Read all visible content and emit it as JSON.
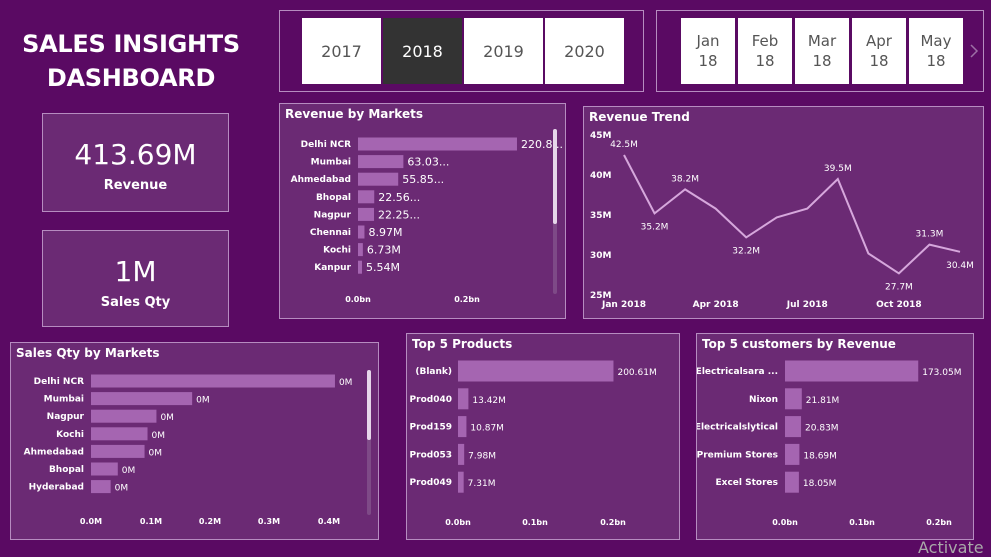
{
  "header": {
    "title_line1": "SALES INSIGHTS",
    "title_line2": "DASHBOARD"
  },
  "kpis": {
    "revenue": {
      "value": "413.69M",
      "label": "Revenue"
    },
    "qty": {
      "value": "1M",
      "label": "Sales Qty"
    }
  },
  "years": {
    "items": [
      "2017",
      "2018",
      "2019",
      "2020"
    ],
    "selected": "2018"
  },
  "months": {
    "items": [
      [
        "Jan",
        "18"
      ],
      [
        "Feb",
        "18"
      ],
      [
        "Mar",
        "18"
      ],
      [
        "Apr",
        "18"
      ],
      [
        "May",
        "18"
      ]
    ],
    "next_icon": "chevron-right-icon"
  },
  "panels": {
    "rev_markets": "Revenue by Markets",
    "trend": "Revenue Trend",
    "qty_markets": "Sales Qty by Markets",
    "products": "Top 5 Products",
    "customers": "Top 5 customers by Revenue"
  },
  "watermark": "Activate",
  "colors": {
    "bar": "#a565b1",
    "line": "#d6a7dc",
    "background": "#5a0a63",
    "panel": "#6b2a74"
  },
  "chart_data": [
    {
      "id": "rev_markets",
      "type": "bar",
      "orientation": "horizontal",
      "title": "Revenue by Markets",
      "categories": [
        "Delhi NCR",
        "Mumbai",
        "Ahmedabad",
        "Bhopal",
        "Nagpur",
        "Chennai",
        "Kochi",
        "Kanpur"
      ],
      "values": [
        220.8,
        63.03,
        55.85,
        22.56,
        22.25,
        8.97,
        6.73,
        5.54
      ],
      "unit": "M",
      "labels": [
        "220.8...",
        "63.03...",
        "55.85...",
        "22.56...",
        "22.25...",
        "8.97M",
        "6.73M",
        "5.54M"
      ],
      "xticks": [
        "0.0bn",
        "0.2bn"
      ],
      "xlim": [
        0,
        250
      ]
    },
    {
      "id": "trend",
      "type": "line",
      "title": "Revenue Trend",
      "x": [
        "Jan 2018",
        "Feb 2018",
        "Mar 2018",
        "Apr 2018",
        "May 2018",
        "Jun 2018",
        "Jul 2018",
        "Aug 2018",
        "Sep 2018",
        "Oct 2018",
        "Nov 2018",
        "Dec 2018"
      ],
      "values": [
        42.5,
        35.2,
        38.2,
        35.8,
        32.2,
        34.7,
        35.8,
        39.5,
        30.2,
        27.7,
        31.3,
        30.4
      ],
      "point_labels": [
        "42.5M",
        "35.2M",
        "38.2M",
        "",
        "32.2M",
        "",
        "",
        "39.5M",
        "",
        "27.7M",
        "31.3M",
        "30.4M"
      ],
      "xticks": [
        {
          "i": 0,
          "label": "Jan 2018"
        },
        {
          "i": 3,
          "label": "Apr 2018"
        },
        {
          "i": 6,
          "label": "Jul 2018"
        },
        {
          "i": 9,
          "label": "Oct 2018"
        }
      ],
      "yticks": [
        "25M",
        "30M",
        "35M",
        "40M",
        "45M"
      ],
      "ylim": [
        25,
        45
      ]
    },
    {
      "id": "qty_markets",
      "type": "bar",
      "orientation": "horizontal",
      "title": "Sales Qty by Markets",
      "categories": [
        "Delhi NCR",
        "Mumbai",
        "Nagpur",
        "Kochi",
        "Ahmedabad",
        "Bhopal",
        "Hyderabad"
      ],
      "values": [
        0.41,
        0.17,
        0.11,
        0.095,
        0.09,
        0.045,
        0.033
      ],
      "labels": [
        "0M",
        "0M",
        "0M",
        "0M",
        "0M",
        "0M",
        "0M"
      ],
      "xticks": [
        "0.0M",
        "0.1M",
        "0.2M",
        "0.3M",
        "0.4M"
      ],
      "xlim": [
        0,
        0.4
      ]
    },
    {
      "id": "products",
      "type": "bar",
      "orientation": "horizontal",
      "title": "Top 5 Products",
      "categories": [
        "(Blank)",
        "Prod040",
        "Prod159",
        "Prod053",
        "Prod049"
      ],
      "values": [
        200.61,
        13.42,
        10.87,
        7.98,
        7.31
      ],
      "labels": [
        "200.61M",
        "13.42M",
        "10.87M",
        "7.98M",
        "7.31M"
      ],
      "xticks": [
        "0.0bn",
        "0.1bn",
        "0.2bn"
      ],
      "xlim": [
        0,
        200
      ]
    },
    {
      "id": "customers",
      "type": "bar",
      "orientation": "horizontal",
      "title": "Top 5 customers by Revenue",
      "categories": [
        "Electricalsara ...",
        "Nixon",
        "Electricalslytical",
        "Premium Stores",
        "Excel Stores"
      ],
      "values": [
        173.05,
        21.81,
        20.83,
        18.69,
        18.05
      ],
      "labels": [
        "173.05M",
        "21.81M",
        "20.83M",
        "18.69M",
        "18.05M"
      ],
      "xticks": [
        "0.0bn",
        "0.1bn",
        "0.2bn"
      ],
      "xlim": [
        0,
        200
      ]
    }
  ]
}
